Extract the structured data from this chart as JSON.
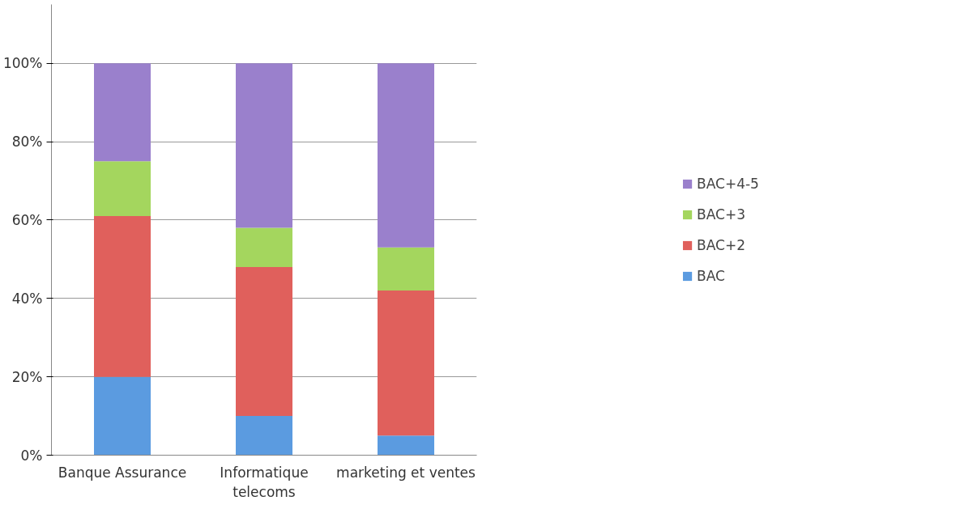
{
  "chart_data": {
    "type": "bar",
    "stacked": true,
    "categories": [
      "Banque Assurance",
      "Informatique\ntelecoms",
      "marketing et ventes"
    ],
    "series": [
      {
        "name": "BAC",
        "color": "#5b9be0",
        "values": [
          20,
          10,
          5
        ]
      },
      {
        "name": "BAC+2",
        "color": "#e0605c",
        "values": [
          41,
          38,
          37
        ]
      },
      {
        "name": "BAC+3",
        "color": "#a4d65e",
        "values": [
          14,
          10,
          11
        ]
      },
      {
        "name": "BAC+4-5",
        "color": "#9a80cc",
        "values": [
          25,
          42,
          47
        ]
      }
    ],
    "ylim": [
      0,
      115
    ],
    "yticks": [
      {
        "value": 0,
        "label": "0%"
      },
      {
        "value": 20,
        "label": "20%"
      },
      {
        "value": 40,
        "label": "40%"
      },
      {
        "value": 60,
        "label": "60%"
      },
      {
        "value": 80,
        "label": "80%"
      },
      {
        "value": 100,
        "label": "100%"
      }
    ],
    "grid": "y",
    "legend": "right"
  }
}
